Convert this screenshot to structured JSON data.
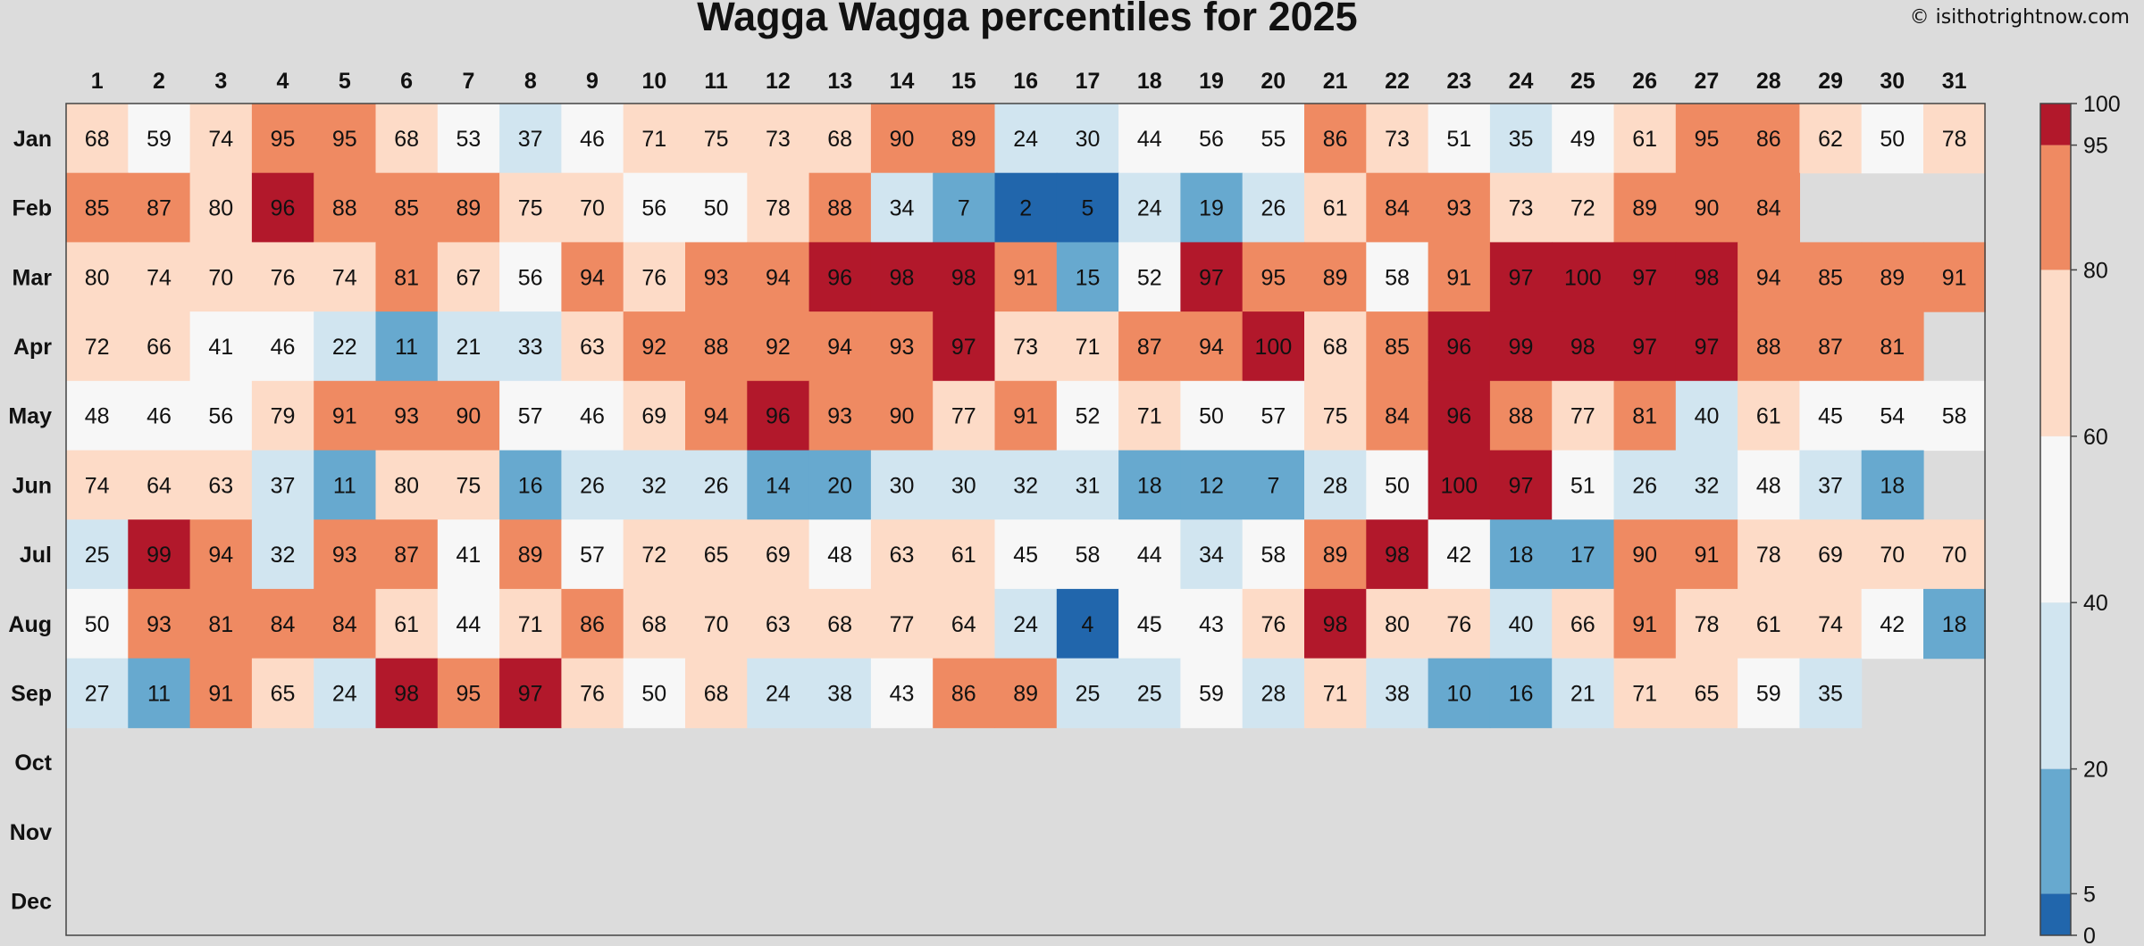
{
  "chart_data": {
    "type": "heatmap",
    "title": "Wagga Wagga percentiles for 2025",
    "credit": "© isithotrightnow.com",
    "days": [
      "1",
      "2",
      "3",
      "4",
      "5",
      "6",
      "7",
      "8",
      "9",
      "10",
      "11",
      "12",
      "13",
      "14",
      "15",
      "16",
      "17",
      "18",
      "19",
      "20",
      "21",
      "22",
      "23",
      "24",
      "25",
      "26",
      "27",
      "28",
      "29",
      "30",
      "31"
    ],
    "months": [
      "Jan",
      "Feb",
      "Mar",
      "Apr",
      "May",
      "Jun",
      "Jul",
      "Aug",
      "Sep",
      "Oct",
      "Nov",
      "Dec"
    ],
    "values": [
      [
        68,
        59,
        74,
        95,
        95,
        68,
        53,
        37,
        46,
        71,
        75,
        73,
        68,
        90,
        89,
        24,
        30,
        44,
        56,
        55,
        86,
        73,
        51,
        35,
        49,
        61,
        95,
        86,
        62,
        50,
        78
      ],
      [
        85,
        87,
        80,
        96,
        88,
        85,
        89,
        75,
        70,
        56,
        50,
        78,
        88,
        34,
        7,
        2,
        5,
        24,
        19,
        26,
        61,
        84,
        93,
        73,
        72,
        89,
        90,
        84
      ],
      [
        80,
        74,
        70,
        76,
        74,
        81,
        67,
        56,
        94,
        76,
        93,
        94,
        96,
        98,
        98,
        91,
        15,
        52,
        97,
        95,
        89,
        58,
        91,
        97,
        100,
        97,
        98,
        94,
        85,
        89,
        91
      ],
      [
        72,
        66,
        41,
        46,
        22,
        11,
        21,
        33,
        63,
        92,
        88,
        92,
        94,
        93,
        97,
        73,
        71,
        87,
        94,
        100,
        68,
        85,
        96,
        99,
        98,
        97,
        97,
        88,
        87,
        81
      ],
      [
        48,
        46,
        56,
        79,
        91,
        93,
        90,
        57,
        46,
        69,
        94,
        96,
        93,
        90,
        77,
        91,
        52,
        71,
        50,
        57,
        75,
        84,
        96,
        88,
        77,
        81,
        40,
        61,
        45,
        54,
        58
      ],
      [
        74,
        64,
        63,
        37,
        11,
        80,
        75,
        16,
        26,
        32,
        26,
        14,
        20,
        30,
        30,
        32,
        31,
        18,
        12,
        7,
        28,
        50,
        100,
        97,
        51,
        26,
        32,
        48,
        37,
        18
      ],
      [
        25,
        99,
        94,
        32,
        93,
        87,
        41,
        89,
        57,
        72,
        65,
        69,
        48,
        63,
        61,
        45,
        58,
        44,
        34,
        58,
        89,
        98,
        42,
        18,
        17,
        90,
        91,
        78,
        69,
        70,
        70
      ],
      [
        50,
        93,
        81,
        84,
        84,
        61,
        44,
        71,
        86,
        68,
        70,
        63,
        68,
        77,
        64,
        24,
        4,
        45,
        43,
        76,
        98,
        80,
        76,
        40,
        66,
        91,
        78,
        61,
        74,
        42,
        18
      ],
      [
        27,
        11,
        91,
        65,
        24,
        98,
        95,
        97,
        76,
        50,
        68,
        24,
        38,
        43,
        86,
        89,
        25,
        25,
        59,
        28,
        71,
        38,
        10,
        16,
        21,
        71,
        65,
        59,
        35
      ],
      [],
      [],
      []
    ],
    "colorbar": {
      "ticks": [
        "100",
        "95",
        "80",
        "60",
        "40",
        "20",
        "5",
        "0"
      ],
      "bins": [
        {
          "from": 0,
          "to": 5,
          "color": "#2166ac"
        },
        {
          "from": 5,
          "to": 20,
          "color": "#67a9cf"
        },
        {
          "from": 20,
          "to": 40,
          "color": "#d1e5f0"
        },
        {
          "from": 40,
          "to": 60,
          "color": "#f7f7f7"
        },
        {
          "from": 60,
          "to": 80,
          "color": "#fddbc7"
        },
        {
          "from": 80,
          "to": 95,
          "color": "#ef8a62"
        },
        {
          "from": 95,
          "to": 100,
          "color": "#b2182b"
        }
      ]
    },
    "background_color": "#dcdcdc",
    "empty_color": "#dcdcdc"
  }
}
